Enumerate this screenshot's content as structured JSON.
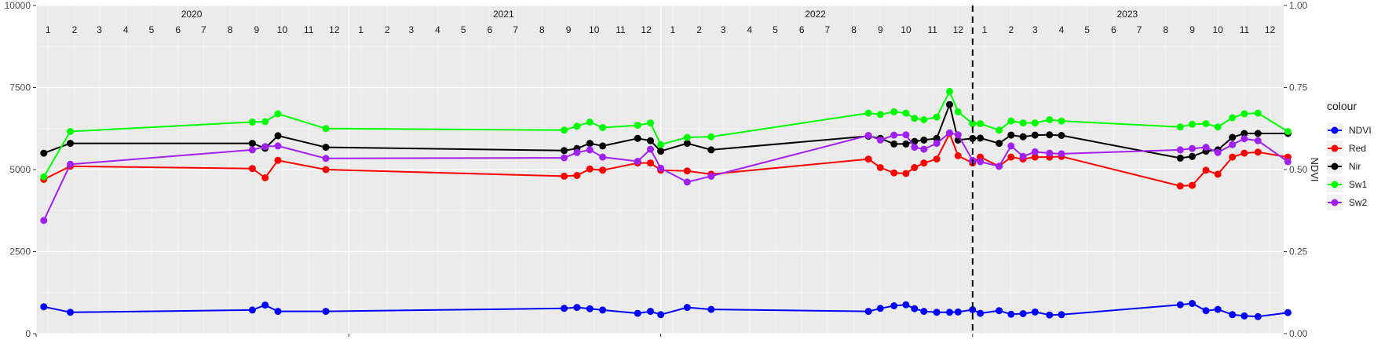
{
  "chart_data": {
    "type": "line",
    "years": [
      "2020",
      "2021",
      "2022",
      "2023"
    ],
    "month_labels": [
      "1",
      "2",
      "3",
      "4",
      "5",
      "6",
      "7",
      "8",
      "9",
      "10",
      "11",
      "12"
    ],
    "x_range": [
      "2020-01-01",
      "2023-12-31"
    ],
    "y_left": {
      "range": [
        0,
        10000
      ],
      "ticks": [
        0,
        2500,
        5000,
        7500,
        10000
      ],
      "tick_labels": [
        "0",
        "2500",
        "5000",
        "7500",
        "10000"
      ]
    },
    "y_right": {
      "label": "NDVI",
      "range": [
        0,
        1
      ],
      "ticks": [
        0,
        0.25,
        0.5,
        0.75,
        1
      ],
      "tick_labels": [
        "0.00",
        "0.25",
        "0.50",
        "0.75",
        "1.00"
      ]
    },
    "vline": "2023-01-01",
    "legend": {
      "title": "colour",
      "position": "right"
    },
    "series": [
      {
        "name": "NDVI",
        "color": "#0000ff",
        "points": [
          [
            "2020-01-10",
            820
          ],
          [
            "2020-02-10",
            650
          ],
          [
            "2020-09-10",
            720
          ],
          [
            "2020-09-25",
            870
          ],
          [
            "2020-10-10",
            680
          ],
          [
            "2020-12-05",
            680
          ],
          [
            "2021-09-10",
            770
          ],
          [
            "2021-09-25",
            800
          ],
          [
            "2021-10-10",
            760
          ],
          [
            "2021-10-25",
            720
          ],
          [
            "2021-12-05",
            620
          ],
          [
            "2021-12-20",
            680
          ],
          [
            "2022-01-01",
            580
          ],
          [
            "2022-02-01",
            800
          ],
          [
            "2022-03-01",
            740
          ],
          [
            "2022-09-01",
            680
          ],
          [
            "2022-09-15",
            770
          ],
          [
            "2022-10-01",
            850
          ],
          [
            "2022-10-15",
            880
          ],
          [
            "2022-10-25",
            760
          ],
          [
            "2022-11-05",
            680
          ],
          [
            "2022-11-20",
            650
          ],
          [
            "2022-12-05",
            650
          ],
          [
            "2022-12-15",
            660
          ],
          [
            "2023-01-01",
            730
          ],
          [
            "2023-01-10",
            620
          ],
          [
            "2023-02-01",
            700
          ],
          [
            "2023-02-15",
            590
          ],
          [
            "2023-03-01",
            610
          ],
          [
            "2023-03-15",
            660
          ],
          [
            "2023-04-01",
            570
          ],
          [
            "2023-04-15",
            580
          ],
          [
            "2023-09-01",
            880
          ],
          [
            "2023-09-15",
            920
          ],
          [
            "2023-10-01",
            700
          ],
          [
            "2023-10-15",
            740
          ],
          [
            "2023-11-01",
            580
          ],
          [
            "2023-11-15",
            540
          ],
          [
            "2023-12-01",
            520
          ],
          [
            "2024-01-05",
            640
          ]
        ]
      },
      {
        "name": "Red",
        "color": "#ff0000",
        "points": [
          [
            "2020-01-10",
            4700
          ],
          [
            "2020-02-10",
            5100
          ],
          [
            "2020-09-10",
            5030
          ],
          [
            "2020-09-25",
            4750
          ],
          [
            "2020-10-10",
            5280
          ],
          [
            "2020-12-05",
            5000
          ],
          [
            "2021-09-10",
            4800
          ],
          [
            "2021-09-25",
            4820
          ],
          [
            "2021-10-10",
            5020
          ],
          [
            "2021-10-25",
            4980
          ],
          [
            "2021-12-05",
            5200
          ],
          [
            "2021-12-20",
            5200
          ],
          [
            "2022-01-01",
            4980
          ],
          [
            "2022-02-01",
            4960
          ],
          [
            "2022-03-01",
            4860
          ],
          [
            "2022-09-01",
            5320
          ],
          [
            "2022-09-15",
            5060
          ],
          [
            "2022-10-01",
            4900
          ],
          [
            "2022-10-15",
            4880
          ],
          [
            "2022-10-25",
            5060
          ],
          [
            "2022-11-05",
            5200
          ],
          [
            "2022-11-20",
            5320
          ],
          [
            "2022-12-05",
            6100
          ],
          [
            "2022-12-15",
            5420
          ],
          [
            "2023-01-01",
            5200
          ],
          [
            "2023-01-10",
            5380
          ],
          [
            "2023-02-01",
            5100
          ],
          [
            "2023-02-15",
            5380
          ],
          [
            "2023-03-01",
            5320
          ],
          [
            "2023-03-15",
            5380
          ],
          [
            "2023-04-01",
            5380
          ],
          [
            "2023-04-15",
            5400
          ],
          [
            "2023-09-01",
            4500
          ],
          [
            "2023-09-15",
            4520
          ],
          [
            "2023-10-01",
            4980
          ],
          [
            "2023-10-15",
            4860
          ],
          [
            "2023-11-01",
            5380
          ],
          [
            "2023-11-15",
            5500
          ],
          [
            "2023-12-01",
            5530
          ],
          [
            "2024-01-05",
            5380
          ]
        ]
      },
      {
        "name": "Nir",
        "color": "#000000",
        "points": [
          [
            "2020-01-10",
            5500
          ],
          [
            "2020-02-10",
            5800
          ],
          [
            "2020-09-10",
            5800
          ],
          [
            "2020-09-25",
            5650
          ],
          [
            "2020-10-10",
            6030
          ],
          [
            "2020-12-05",
            5680
          ],
          [
            "2021-09-10",
            5580
          ],
          [
            "2021-09-25",
            5640
          ],
          [
            "2021-10-10",
            5800
          ],
          [
            "2021-10-25",
            5720
          ],
          [
            "2021-12-05",
            5950
          ],
          [
            "2021-12-20",
            5880
          ],
          [
            "2022-01-01",
            5560
          ],
          [
            "2022-02-01",
            5800
          ],
          [
            "2022-03-01",
            5600
          ],
          [
            "2022-09-01",
            6020
          ],
          [
            "2022-09-15",
            5950
          ],
          [
            "2022-10-01",
            5780
          ],
          [
            "2022-10-15",
            5780
          ],
          [
            "2022-10-25",
            5860
          ],
          [
            "2022-11-05",
            5900
          ],
          [
            "2022-11-20",
            5950
          ],
          [
            "2022-12-05",
            6980
          ],
          [
            "2022-12-15",
            5900
          ],
          [
            "2023-01-01",
            5950
          ],
          [
            "2023-01-10",
            5960
          ],
          [
            "2023-02-01",
            5800
          ],
          [
            "2023-02-15",
            6050
          ],
          [
            "2023-03-01",
            6000
          ],
          [
            "2023-03-15",
            6050
          ],
          [
            "2023-04-01",
            6060
          ],
          [
            "2023-04-15",
            6040
          ],
          [
            "2023-09-01",
            5350
          ],
          [
            "2023-09-15",
            5400
          ],
          [
            "2023-10-01",
            5560
          ],
          [
            "2023-10-15",
            5600
          ],
          [
            "2023-11-01",
            5980
          ],
          [
            "2023-11-15",
            6100
          ],
          [
            "2023-12-01",
            6100
          ],
          [
            "2024-01-05",
            6100
          ]
        ]
      },
      {
        "name": "Sw1",
        "color": "#00ff00",
        "points": [
          [
            "2020-01-10",
            4780
          ],
          [
            "2020-02-10",
            6160
          ],
          [
            "2020-09-10",
            6450
          ],
          [
            "2020-09-25",
            6460
          ],
          [
            "2020-10-10",
            6700
          ],
          [
            "2020-12-05",
            6250
          ],
          [
            "2021-09-10",
            6200
          ],
          [
            "2021-09-25",
            6320
          ],
          [
            "2021-10-10",
            6450
          ],
          [
            "2021-10-25",
            6280
          ],
          [
            "2021-12-05",
            6350
          ],
          [
            "2021-12-20",
            6420
          ],
          [
            "2022-01-01",
            5760
          ],
          [
            "2022-02-01",
            5980
          ],
          [
            "2022-03-01",
            6000
          ],
          [
            "2022-09-01",
            6720
          ],
          [
            "2022-09-15",
            6680
          ],
          [
            "2022-10-01",
            6760
          ],
          [
            "2022-10-15",
            6720
          ],
          [
            "2022-10-25",
            6560
          ],
          [
            "2022-11-05",
            6520
          ],
          [
            "2022-11-20",
            6600
          ],
          [
            "2022-12-05",
            7380
          ],
          [
            "2022-12-15",
            6760
          ],
          [
            "2023-01-01",
            6400
          ],
          [
            "2023-01-10",
            6400
          ],
          [
            "2023-02-01",
            6200
          ],
          [
            "2023-02-15",
            6480
          ],
          [
            "2023-03-01",
            6420
          ],
          [
            "2023-03-15",
            6420
          ],
          [
            "2023-04-01",
            6520
          ],
          [
            "2023-04-15",
            6480
          ],
          [
            "2023-09-01",
            6300
          ],
          [
            "2023-09-15",
            6380
          ],
          [
            "2023-10-01",
            6400
          ],
          [
            "2023-10-15",
            6300
          ],
          [
            "2023-11-01",
            6580
          ],
          [
            "2023-11-15",
            6700
          ],
          [
            "2023-12-01",
            6720
          ],
          [
            "2024-01-05",
            6160
          ]
        ]
      },
      {
        "name": "Sw2",
        "color": "#a020f0",
        "points": [
          [
            "2020-01-10",
            3450
          ],
          [
            "2020-02-10",
            5160
          ],
          [
            "2020-09-10",
            5600
          ],
          [
            "2020-09-25",
            5700
          ],
          [
            "2020-10-10",
            5720
          ],
          [
            "2020-12-05",
            5340
          ],
          [
            "2021-09-10",
            5360
          ],
          [
            "2021-09-25",
            5520
          ],
          [
            "2021-10-10",
            5600
          ],
          [
            "2021-10-25",
            5380
          ],
          [
            "2021-12-05",
            5250
          ],
          [
            "2021-12-20",
            5620
          ],
          [
            "2022-01-01",
            5040
          ],
          [
            "2022-02-01",
            4620
          ],
          [
            "2022-03-01",
            4800
          ],
          [
            "2022-09-01",
            6040
          ],
          [
            "2022-09-15",
            5900
          ],
          [
            "2022-10-01",
            6050
          ],
          [
            "2022-10-15",
            6060
          ],
          [
            "2022-10-25",
            5680
          ],
          [
            "2022-11-05",
            5620
          ],
          [
            "2022-11-20",
            5800
          ],
          [
            "2022-12-05",
            6120
          ],
          [
            "2022-12-15",
            6060
          ],
          [
            "2023-01-01",
            5280
          ],
          [
            "2023-01-10",
            5240
          ],
          [
            "2023-02-01",
            5100
          ],
          [
            "2023-02-15",
            5720
          ],
          [
            "2023-03-01",
            5400
          ],
          [
            "2023-03-15",
            5540
          ],
          [
            "2023-04-01",
            5500
          ],
          [
            "2023-04-15",
            5480
          ],
          [
            "2023-09-01",
            5600
          ],
          [
            "2023-09-15",
            5640
          ],
          [
            "2023-10-01",
            5680
          ],
          [
            "2023-10-15",
            5520
          ],
          [
            "2023-11-01",
            5760
          ],
          [
            "2023-11-15",
            5940
          ],
          [
            "2023-12-01",
            5880
          ],
          [
            "2024-01-05",
            5240
          ]
        ]
      }
    ]
  }
}
